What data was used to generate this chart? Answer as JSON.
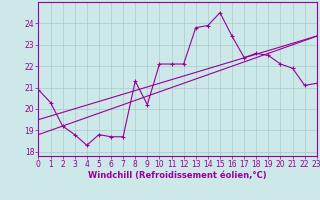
{
  "xlabel": "Windchill (Refroidissement éolien,°C)",
  "bg_color": "#cce8e8",
  "line_color": "#990099",
  "hours": [
    0,
    1,
    2,
    3,
    4,
    5,
    6,
    7,
    8,
    9,
    10,
    11,
    12,
    13,
    14,
    15,
    16,
    17,
    18,
    19,
    20,
    21,
    22,
    23
  ],
  "windchill": [
    20.9,
    20.3,
    19.2,
    18.8,
    18.3,
    18.8,
    18.7,
    18.7,
    21.3,
    20.2,
    22.1,
    22.1,
    22.1,
    23.8,
    23.9,
    24.5,
    23.4,
    22.4,
    22.6,
    22.5,
    22.1,
    21.9,
    21.1,
    21.2
  ],
  "regression1": [
    19.5,
    19.67,
    19.84,
    20.01,
    20.18,
    20.35,
    20.52,
    20.69,
    20.86,
    21.03,
    21.2,
    21.37,
    21.54,
    21.71,
    21.88,
    22.05,
    22.22,
    22.39,
    22.56,
    22.73,
    22.9,
    23.07,
    23.24,
    23.41
  ],
  "regression2": [
    18.8,
    19.0,
    19.2,
    19.4,
    19.6,
    19.8,
    20.0,
    20.2,
    20.4,
    20.6,
    20.8,
    21.0,
    21.2,
    21.4,
    21.6,
    21.8,
    22.0,
    22.2,
    22.4,
    22.6,
    22.8,
    23.0,
    23.2,
    23.4
  ],
  "xlim": [
    0,
    23
  ],
  "ylim": [
    17.8,
    25.0
  ],
  "yticks": [
    18,
    19,
    20,
    21,
    22,
    23,
    24
  ],
  "xticks": [
    0,
    1,
    2,
    3,
    4,
    5,
    6,
    7,
    8,
    9,
    10,
    11,
    12,
    13,
    14,
    15,
    16,
    17,
    18,
    19,
    20,
    21,
    22,
    23
  ],
  "grid_color": "#aacccc",
  "tick_color": "#990099",
  "label_color": "#990099",
  "tick_fontsize": 5.5,
  "xlabel_fontsize": 6.0
}
